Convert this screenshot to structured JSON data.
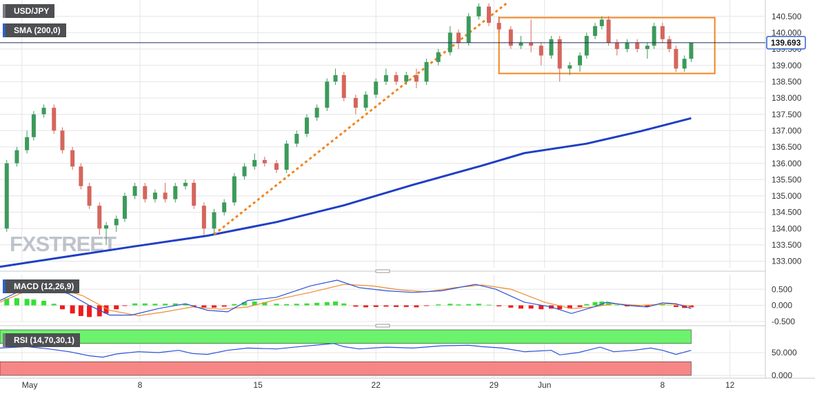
{
  "chart_data": [
    {
      "type": "candlestick",
      "title": "USD/JPY",
      "watermark": "FXSTREET",
      "up_color": "#3d9a5b",
      "down_color": "#d4665c",
      "xlim": [
        -0.3,
        45.1
      ],
      "ylim": [
        132.8,
        141.0
      ],
      "yticks": [
        {
          "value": 133,
          "label": "133.000"
        },
        {
          "value": 133.5,
          "label": "133.500"
        },
        {
          "value": 134,
          "label": "134.000"
        },
        {
          "value": 134.5,
          "label": "134.500"
        },
        {
          "value": 135,
          "label": "135.000"
        },
        {
          "value": 135.5,
          "label": "135.500"
        },
        {
          "value": 136,
          "label": "136.000"
        },
        {
          "value": 136.5,
          "label": "136.500"
        },
        {
          "value": 137,
          "label": "137.000"
        },
        {
          "value": 137.5,
          "label": "137.500"
        },
        {
          "value": 138,
          "label": "138.000"
        },
        {
          "value": 138.5,
          "label": "138.500"
        },
        {
          "value": 139,
          "label": "139.000"
        },
        {
          "value": 139.5,
          "label": "139.500"
        },
        {
          "value": 140,
          "label": "140.000"
        },
        {
          "value": 140.5,
          "label": "140.500"
        }
      ],
      "x": [
        0.1,
        0.7,
        1.3,
        1.7,
        2.3,
        2.9,
        3.4,
        4.0,
        4.5,
        5.0,
        5.6,
        6.0,
        6.6,
        7.1,
        7.7,
        8.3,
        8.9,
        9.5,
        10.1,
        10.7,
        11.2,
        11.8,
        12.4,
        13.0,
        13.6,
        14.2,
        14.8,
        15.4,
        16.1,
        16.7,
        17.3,
        17.9,
        18.5,
        19.1,
        19.6,
        20.1,
        20.8,
        21.4,
        22.0,
        22.6,
        23.2,
        23.8,
        24.4,
        25.0,
        25.7,
        26.4,
        26.9,
        27.5,
        28.1,
        28.7,
        29.3,
        30.0,
        30.6,
        31.2,
        31.8,
        32.4,
        32.9,
        33.5,
        34.1,
        34.5,
        35.0,
        35.4,
        35.8,
        36.3,
        36.9,
        37.5,
        38.1,
        38.5,
        39.0,
        39.4,
        39.8,
        40.3,
        40.7
      ],
      "open": [
        134.0,
        136.0,
        136.4,
        136.8,
        137.5,
        137.7,
        137.0,
        136.4,
        135.9,
        135.3,
        134.7,
        134.0,
        134.1,
        134.3,
        135.0,
        135.3,
        134.9,
        135.1,
        134.9,
        135.3,
        135.4,
        134.7,
        134.0,
        134.5,
        134.8,
        135.6,
        135.9,
        136.1,
        136.0,
        135.8,
        136.6,
        136.9,
        137.4,
        137.7,
        138.5,
        138.7,
        138.0,
        137.7,
        138.1,
        138.5,
        138.7,
        138.5,
        138.7,
        138.5,
        139.1,
        139.4,
        140.0,
        139.7,
        140.5,
        140.8,
        140.3,
        140.1,
        139.6,
        139.7,
        139.6,
        139.3,
        139.8,
        138.9,
        139.0,
        139.3,
        139.9,
        140.2,
        140.4,
        139.7,
        139.5,
        139.7,
        139.5,
        139.6,
        140.2,
        139.8,
        139.5,
        138.9,
        139.2
      ],
      "high": [
        136.1,
        136.5,
        137.0,
        137.6,
        137.8,
        137.8,
        137.1,
        136.5,
        136.0,
        135.4,
        134.8,
        134.2,
        134.4,
        135.1,
        135.4,
        135.4,
        135.2,
        135.4,
        135.4,
        135.5,
        135.5,
        134.8,
        134.6,
        134.9,
        135.7,
        136.0,
        136.3,
        136.2,
        136.1,
        136.7,
        137.0,
        137.5,
        137.8,
        138.6,
        138.9,
        138.8,
        138.1,
        138.2,
        138.6,
        138.9,
        138.8,
        138.8,
        138.9,
        139.2,
        139.5,
        140.2,
        140.1,
        140.6,
        140.9,
        140.9,
        140.5,
        140.2,
        139.9,
        140.4,
        139.7,
        139.9,
        139.9,
        139.1,
        139.4,
        140.0,
        140.3,
        140.5,
        140.5,
        139.8,
        139.8,
        139.8,
        139.7,
        140.3,
        140.3,
        139.9,
        139.6,
        139.3,
        139.7
      ],
      "low": [
        133.9,
        135.9,
        136.3,
        136.7,
        137.4,
        136.9,
        136.3,
        135.8,
        135.2,
        134.6,
        133.8,
        133.5,
        133.9,
        134.2,
        134.9,
        134.8,
        134.8,
        134.8,
        134.8,
        135.2,
        134.6,
        133.8,
        133.8,
        134.4,
        134.7,
        135.5,
        135.8,
        135.9,
        135.7,
        135.7,
        136.5,
        136.8,
        137.3,
        137.6,
        138.4,
        137.9,
        137.5,
        137.6,
        138.0,
        138.4,
        138.4,
        138.4,
        138.3,
        138.4,
        139.0,
        139.3,
        139.5,
        139.6,
        140.4,
        140.2,
        140.0,
        139.5,
        139.5,
        139.4,
        139.0,
        139.2,
        138.5,
        138.7,
        138.8,
        139.2,
        139.8,
        140.1,
        139.6,
        139.3,
        139.4,
        139.4,
        139.2,
        139.5,
        139.7,
        139.4,
        138.8,
        138.8,
        139.1
      ],
      "close": [
        136.0,
        136.4,
        136.8,
        137.5,
        137.7,
        137.0,
        136.4,
        135.9,
        135.3,
        134.7,
        134.0,
        134.1,
        134.3,
        135.0,
        135.3,
        134.9,
        135.1,
        134.9,
        135.3,
        135.4,
        134.7,
        134.0,
        134.5,
        134.8,
        135.6,
        135.9,
        136.1,
        136.0,
        135.8,
        136.6,
        136.9,
        137.4,
        137.7,
        138.5,
        138.7,
        138.0,
        137.7,
        138.1,
        138.5,
        138.7,
        138.5,
        138.7,
        138.5,
        139.1,
        139.4,
        140.0,
        139.7,
        140.5,
        140.8,
        140.3,
        140.1,
        139.6,
        139.7,
        139.6,
        139.3,
        139.8,
        138.9,
        139.0,
        139.3,
        139.9,
        140.2,
        140.4,
        139.7,
        139.5,
        139.7,
        139.5,
        139.6,
        140.2,
        139.8,
        139.5,
        138.9,
        139.2,
        139.7
      ],
      "sma": {
        "name": "SMA (200,0)",
        "color": "#1f3fc4",
        "x": [
          -0.3,
          3.8,
          7.5,
          12.0,
          16.1,
          20.1,
          24.2,
          28.3,
          30.8,
          34.5,
          37.7,
          40.7
        ],
        "values": [
          132.83,
          133.15,
          133.44,
          133.78,
          134.2,
          134.71,
          135.34,
          135.93,
          136.31,
          136.6,
          136.98,
          137.38
        ]
      },
      "trendline": {
        "color": "#f0851e",
        "x": [
          12.4,
          29.8
        ],
        "values": [
          133.82,
          140.92
        ]
      },
      "range_box": {
        "color": "#f0851e",
        "x": [
          29.3,
          42.1
        ],
        "values": [
          140.46,
          138.75
        ]
      },
      "last_price": 139.693,
      "last_price_color": "#1f2d5a"
    },
    {
      "type": "macd",
      "title": "MACD (12,26,9)",
      "xlim": [
        -0.3,
        45.1
      ],
      "ylim": [
        -0.5,
        0.95
      ],
      "yticks": [
        {
          "value": -0.5,
          "label": "-0.500"
        },
        {
          "value": 0,
          "label": "0.000"
        },
        {
          "value": 0.5,
          "label": "0.500"
        }
      ],
      "histogram": {
        "up_color": "#33e033",
        "down_color": "#ee1c1c",
        "x": [
          0.1,
          0.7,
          1.3,
          1.7,
          2.3,
          2.9,
          3.4,
          4.0,
          4.5,
          5.0,
          5.6,
          6.0,
          6.6,
          7.1,
          7.7,
          8.3,
          8.9,
          9.5,
          10.1,
          10.7,
          11.2,
          11.8,
          12.4,
          13.0,
          13.6,
          14.2,
          14.8,
          15.4,
          16.1,
          16.7,
          17.3,
          17.9,
          18.5,
          19.1,
          19.6,
          20.1,
          20.8,
          21.4,
          22.0,
          22.6,
          23.2,
          23.8,
          24.4,
          25.0,
          25.7,
          26.4,
          26.9,
          27.5,
          28.1,
          28.7,
          29.3,
          30.0,
          30.6,
          31.2,
          31.8,
          32.4,
          32.9,
          33.5,
          34.1,
          34.5,
          35.0,
          35.4,
          35.8,
          36.3,
          36.9,
          37.5,
          38.1,
          38.5,
          39.0,
          39.4,
          39.8,
          40.3,
          40.7
        ],
        "values": [
          0.2,
          0.22,
          0.2,
          0.18,
          0.14,
          0.05,
          -0.12,
          -0.25,
          -0.33,
          -0.36,
          -0.34,
          -0.25,
          -0.12,
          -0.02,
          0.06,
          0.06,
          0.05,
          0.05,
          0.06,
          0.05,
          -0.03,
          -0.06,
          -0.07,
          -0.04,
          0.04,
          0.1,
          0.12,
          0.1,
          0.05,
          0.04,
          0.05,
          0.06,
          0.08,
          0.1,
          0.12,
          0.06,
          -0.04,
          -0.06,
          -0.05,
          -0.04,
          -0.05,
          -0.05,
          -0.06,
          -0.02,
          0.03,
          0.05,
          0.03,
          0.04,
          0.05,
          0.02,
          -0.03,
          -0.07,
          -0.1,
          -0.1,
          -0.12,
          -0.1,
          -0.12,
          -0.1,
          -0.05,
          0.04,
          0.1,
          0.12,
          0.08,
          0.02,
          -0.03,
          -0.03,
          -0.04,
          0.02,
          0.03,
          0.01,
          -0.05,
          -0.08,
          -0.06
        ]
      },
      "macd": {
        "color": "#2a4fd8",
        "x": [
          -0.3,
          1.3,
          2.6,
          3.8,
          5.0,
          6.2,
          7.5,
          9.1,
          10.7,
          12.0,
          13.2,
          14.4,
          16.1,
          18.1,
          19.7,
          21.0,
          22.6,
          24.2,
          25.9,
          27.9,
          29.1,
          30.8,
          32.4,
          33.6,
          34.9,
          35.7,
          36.9,
          38.1,
          39.0,
          39.8,
          40.7
        ],
        "values": [
          0.15,
          0.55,
          0.55,
          0.35,
          0.0,
          -0.3,
          -0.3,
          -0.1,
          0.05,
          -0.15,
          -0.2,
          0.15,
          0.25,
          0.6,
          0.78,
          0.55,
          0.45,
          0.4,
          0.45,
          0.65,
          0.5,
          0.1,
          -0.05,
          -0.25,
          -0.05,
          0.1,
          0.0,
          -0.05,
          0.08,
          0.05,
          -0.1
        ]
      },
      "signal": {
        "color": "#ef8a2e",
        "x": [
          -0.3,
          1.3,
          3.0,
          4.6,
          6.2,
          7.9,
          9.5,
          11.1,
          12.8,
          14.4,
          16.1,
          18.1,
          20.1,
          21.8,
          23.4,
          25.0,
          26.7,
          28.3,
          30.0,
          32.0,
          33.6,
          34.9,
          36.1,
          37.7,
          39.4,
          40.7
        ],
        "values": [
          0.1,
          0.45,
          0.55,
          0.3,
          -0.15,
          -0.32,
          -0.2,
          -0.05,
          -0.12,
          -0.05,
          0.18,
          0.4,
          0.65,
          0.6,
          0.48,
          0.42,
          0.55,
          0.63,
          0.5,
          0.1,
          -0.1,
          -0.05,
          0.05,
          0.0,
          0.05,
          -0.02
        ]
      }
    },
    {
      "type": "rsi",
      "title": "RSI (14,70,30,1)",
      "xlim": [
        -0.3,
        45.1
      ],
      "ylim": [
        0,
        100
      ],
      "yticks": [
        {
          "value": 0,
          "label": "0.000"
        },
        {
          "value": 50,
          "label": "50.000"
        }
      ],
      "xticks": [
        {
          "value": 1,
          "label": "May"
        },
        8,
        15,
        22,
        29,
        {
          "value": 32,
          "label": "Jun"
        },
        {
          "value": 39,
          "label": "8"
        },
        {
          "value": 43,
          "label": "12"
        }
      ],
      "bands": [
        {
          "range": [
            70,
            100
          ],
          "color": "#6cf26c"
        },
        {
          "range": [
            0,
            30
          ],
          "color": "#f78686"
        }
      ],
      "color": "#2a4fd8",
      "x": [
        -0.3,
        1.3,
        2.6,
        3.8,
        5.0,
        5.8,
        6.6,
        7.9,
        9.1,
        10.3,
        11.1,
        12.0,
        13.2,
        14.4,
        16.1,
        17.7,
        18.9,
        19.5,
        20.1,
        21.0,
        22.6,
        24.2,
        25.9,
        27.5,
        28.3,
        29.5,
        30.8,
        32.4,
        32.9,
        34.0,
        35.3,
        36.1,
        37.3,
        38.3,
        39.0,
        39.8,
        40.7
      ],
      "values": [
        60,
        63,
        58,
        52,
        43,
        40,
        47,
        52,
        50,
        55,
        48,
        46,
        55,
        60,
        58,
        64,
        68,
        70,
        63,
        58,
        62,
        60,
        65,
        66,
        63,
        60,
        52,
        55,
        45,
        50,
        62,
        52,
        55,
        60,
        55,
        46,
        55
      ]
    }
  ]
}
